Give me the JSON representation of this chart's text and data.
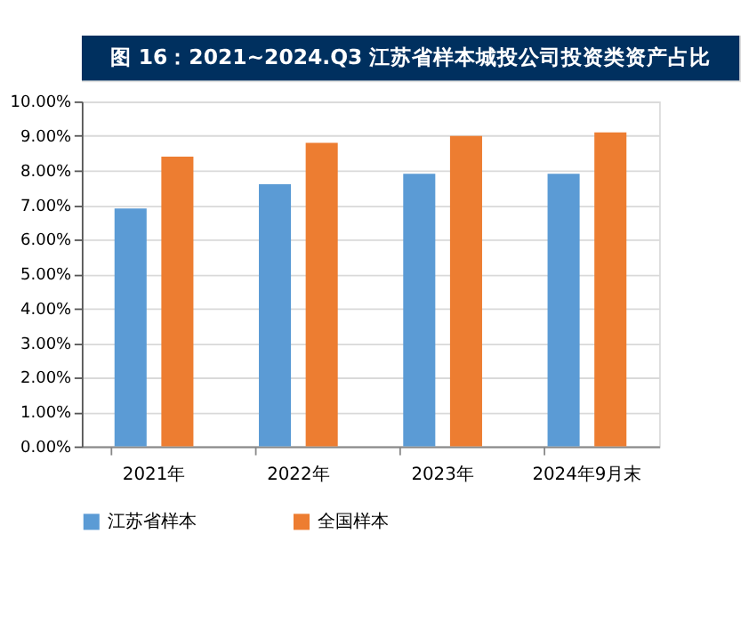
{
  "chart_data": {
    "type": "bar",
    "title": "图 16：2021~2024.Q3 江苏省样本城投公司投资类资产占比",
    "categories": [
      "2021年",
      "2022年",
      "2023年",
      "2024年9月末"
    ],
    "series": [
      {
        "name": "江苏省样本",
        "color": "#5b9bd5",
        "values": [
          6.9,
          7.6,
          7.9,
          7.9
        ]
      },
      {
        "name": "全国样本",
        "color": "#ed7d31",
        "values": [
          8.4,
          8.8,
          9.0,
          9.1
        ]
      }
    ],
    "ylim": [
      0,
      10
    ],
    "yticks": [
      {
        "value": 0,
        "label": "0.00%"
      },
      {
        "value": 1,
        "label": "1.00%"
      },
      {
        "value": 2,
        "label": "2.00%"
      },
      {
        "value": 3,
        "label": "3.00%"
      },
      {
        "value": 4,
        "label": "4.00%"
      },
      {
        "value": 5,
        "label": "5.00%"
      },
      {
        "value": 6,
        "label": "6.00%"
      },
      {
        "value": 7,
        "label": "7.00%"
      },
      {
        "value": 8,
        "label": "8.00%"
      },
      {
        "value": 9,
        "label": "9.00%"
      },
      {
        "value": 10,
        "label": "10.00%"
      }
    ],
    "grid": "y",
    "legend": "bottom"
  }
}
